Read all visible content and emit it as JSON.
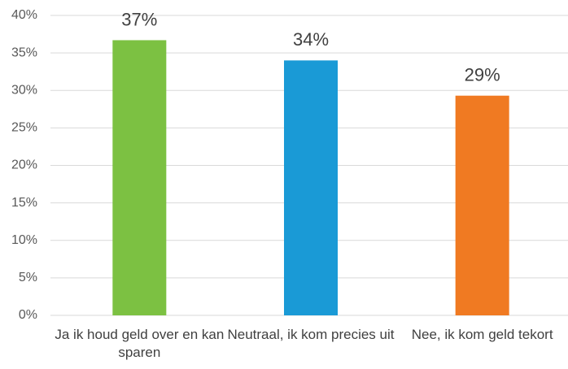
{
  "chart_data": {
    "type": "bar",
    "categories": [
      "Ja ik houd geld over en kan sparen",
      "Neutraal, ik kom precies uit",
      "Nee, ik kom geld tekort"
    ],
    "values": [
      36.7,
      34.0,
      29.3
    ],
    "value_labels": [
      "37%",
      "34%",
      "29%"
    ],
    "colors": [
      "#7cc142",
      "#1a9ad6",
      "#f07a22"
    ],
    "ylim": [
      0,
      40
    ],
    "yticks": [
      {
        "value": 0,
        "label": "0%"
      },
      {
        "value": 5,
        "label": "5%"
      },
      {
        "value": 10,
        "label": "10%"
      },
      {
        "value": 15,
        "label": "15%"
      },
      {
        "value": 20,
        "label": "20%"
      },
      {
        "value": 25,
        "label": "25%"
      },
      {
        "value": 30,
        "label": "30%"
      },
      {
        "value": 35,
        "label": "35%"
      },
      {
        "value": 40,
        "label": "40%"
      }
    ],
    "grid": true
  }
}
